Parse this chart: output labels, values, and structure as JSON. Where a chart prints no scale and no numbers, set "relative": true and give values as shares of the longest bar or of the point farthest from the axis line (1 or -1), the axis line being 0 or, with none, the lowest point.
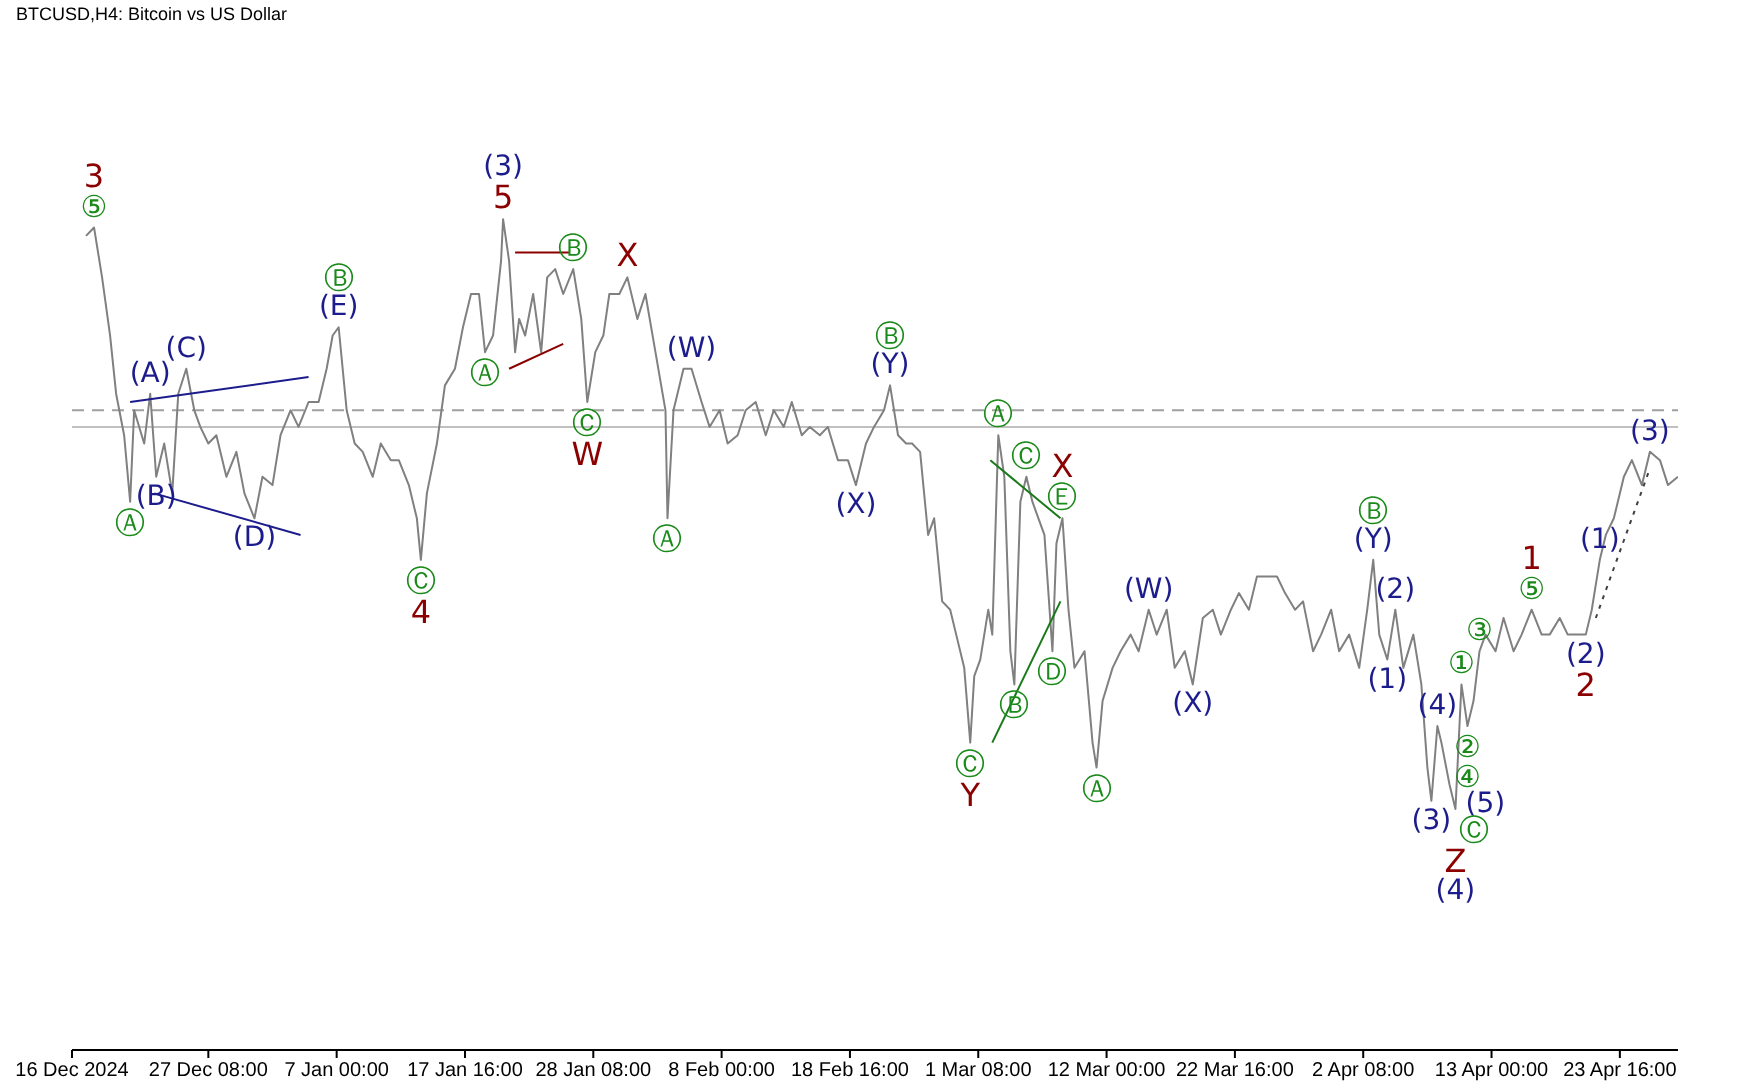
{
  "chart_data": {
    "type": "line",
    "title": "BTCUSD,H4:  Bitcoin vs US Dollar",
    "relative": true,
    "xlim": [
      "2024-12-16",
      "2025-04-28T12:00"
    ],
    "xticks": [
      {
        "value": "2024-12-16",
        "label": "16 Dec 2024"
      },
      {
        "value": "2024-12-27T08:00",
        "label": "27 Dec 08:00"
      },
      {
        "value": "2025-01-07",
        "label": "7 Jan 00:00"
      },
      {
        "value": "2025-01-17T16:00",
        "label": "17 Jan 16:00"
      },
      {
        "value": "2025-01-28T08:00",
        "label": "28 Jan 08:00"
      },
      {
        "value": "2025-02-08",
        "label": "8 Feb 00:00"
      },
      {
        "value": "2025-02-18T16:00",
        "label": "18 Feb 16:00"
      },
      {
        "value": "2025-03-01T08:00",
        "label": "1 Mar 08:00"
      },
      {
        "value": "2025-03-12",
        "label": "12 Mar 00:00"
      },
      {
        "value": "2025-03-22T16:00",
        "label": "22 Mar 16:00"
      },
      {
        "value": "2025-04-02T08:00",
        "label": "2 Apr 08:00"
      },
      {
        "value": "2025-04-13",
        "label": "13 Apr 00:00"
      },
      {
        "value": "2025-04-23T16:00",
        "label": "23 Apr 16:00"
      }
    ],
    "series": [
      {
        "color": "#808080",
        "x": [
          "2024-12-17T04:00",
          "2024-12-17T20:00",
          "2024-12-18T12:00",
          "2024-12-19T04:00",
          "2024-12-19T16:00",
          "2024-12-20T08:00",
          "2024-12-20T20:00",
          "2024-12-21T04:00",
          "2024-12-22T00:00",
          "2024-12-22T12:00",
          "2024-12-23T00:00",
          "2024-12-23T16:00",
          "2024-12-24T08:00",
          "2024-12-24T20:00",
          "2024-12-25T12:00",
          "2024-12-26T04:00",
          "2024-12-26T16:00",
          "2024-12-27T08:00",
          "2024-12-28T00:00",
          "2024-12-28T20:00",
          "2024-12-29T16:00",
          "2024-12-30T08:00",
          "2024-12-31T04:00",
          "2024-12-31T20:00",
          "2025-01-01T16:00",
          "2025-01-02T08:00",
          "2025-01-03T04:00",
          "2025-01-03T20:00",
          "2025-01-04T16:00",
          "2025-01-05T12:00",
          "2025-01-06T04:00",
          "2025-01-06T16:00",
          "2025-01-07T04:00",
          "2025-01-07T20:00",
          "2025-01-08T12:00",
          "2025-01-09T04:00",
          "2025-01-10T00:00",
          "2025-01-10T16:00",
          "2025-01-11T12:00",
          "2025-01-12T04:00",
          "2025-01-13T00:00",
          "2025-01-13T16:00",
          "2025-01-14T00:00",
          "2025-01-14T12:00",
          "2025-01-15T08:00",
          "2025-01-16T00:00",
          "2025-01-16T20:00",
          "2025-01-17T12:00",
          "2025-01-18T04:00",
          "2025-01-18T20:00",
          "2025-01-19T08:00",
          "2025-01-20T00:00",
          "2025-01-20T16:00",
          "2025-01-20T20:00",
          "2025-01-21T08:00",
          "2025-01-21T20:00",
          "2025-01-22T04:00",
          "2025-01-22T16:00",
          "2025-01-23T08:00",
          "2025-01-24T00:00",
          "2025-01-24T12:00",
          "2025-01-25T04:00",
          "2025-01-25T20:00",
          "2025-01-26T16:00",
          "2025-01-27T08:00",
          "2025-01-27T20:00",
          "2025-01-28T12:00",
          "2025-01-29T04:00",
          "2025-01-29T16:00",
          "2025-01-30T12:00",
          "2025-01-31T04:00",
          "2025-02-01T00:00",
          "2025-02-01T16:00",
          "2025-02-02T12:00",
          "2025-02-03T08:00",
          "2025-02-03T12:00",
          "2025-02-04T00:00",
          "2025-02-04T20:00",
          "2025-02-05T12:00",
          "2025-02-06T08:00",
          "2025-02-07T00:00",
          "2025-02-07T20:00",
          "2025-02-08T12:00",
          "2025-02-09T08:00",
          "2025-02-10T00:00",
          "2025-02-10T20:00",
          "2025-02-11T16:00",
          "2025-02-12T08:00",
          "2025-02-13T04:00",
          "2025-02-13T20:00",
          "2025-02-14T16:00",
          "2025-02-15T08:00",
          "2025-02-16T04:00",
          "2025-02-16T20:00",
          "2025-02-17T16:00",
          "2025-02-18T12:00",
          "2025-02-19T04:00",
          "2025-02-20T00:00",
          "2025-02-20T16:00",
          "2025-02-21T12:00",
          "2025-02-22T00:00",
          "2025-02-22T16:00",
          "2025-02-23T08:00",
          "2025-02-23T20:00",
          "2025-02-24T12:00",
          "2025-02-25T04:00",
          "2025-02-25T16:00",
          "2025-02-26T08:00",
          "2025-02-27T00:00",
          "2025-02-27T12:00",
          "2025-02-28T04:00",
          "2025-02-28T16:00",
          "2025-03-01T00:00",
          "2025-03-01T12:00",
          "2025-03-02T04:00",
          "2025-03-02T12:00",
          "2025-03-03T00:00",
          "2025-03-03T12:00",
          "2025-03-04T00:00",
          "2025-03-04T08:00",
          "2025-03-04T20:00",
          "2025-03-05T08:00",
          "2025-03-05T20:00",
          "2025-03-06T08:00",
          "2025-03-06T20:00",
          "2025-03-07T12:00",
          "2025-03-07T20:00",
          "2025-03-08T08:00",
          "2025-03-08T20:00",
          "2025-03-09T08:00",
          "2025-03-10T04:00",
          "2025-03-10T20:00",
          "2025-03-11T04:00",
          "2025-03-11T16:00",
          "2025-03-12T12:00",
          "2025-03-13T04:00",
          "2025-03-14T00:00",
          "2025-03-14T16:00",
          "2025-03-15T12:00",
          "2025-03-16T04:00",
          "2025-03-17T00:00",
          "2025-03-17T16:00",
          "2025-03-18T12:00",
          "2025-03-19T04:00",
          "2025-03-20T00:00",
          "2025-03-20T20:00",
          "2025-03-21T12:00",
          "2025-03-22T08:00",
          "2025-03-23T00:00",
          "2025-03-23T20:00",
          "2025-03-24T12:00",
          "2025-03-25T08:00",
          "2025-03-26T04:00",
          "2025-03-26T20:00",
          "2025-03-27T16:00",
          "2025-03-28T08:00",
          "2025-03-29T04:00",
          "2025-03-29T20:00",
          "2025-03-30T16:00",
          "2025-03-31T08:00",
          "2025-04-01T04:00",
          "2025-04-02T00:00",
          "2025-04-02T16:00",
          "2025-04-03T04:00",
          "2025-04-03T16:00",
          "2025-04-04T08:00",
          "2025-04-05T00:00",
          "2025-04-05T16:00",
          "2025-04-06T12:00",
          "2025-04-07T04:00",
          "2025-04-07T16:00",
          "2025-04-08T00:00",
          "2025-04-08T12:00",
          "2025-04-08T20:00",
          "2025-04-09T12:00",
          "2025-04-10T00:00",
          "2025-04-10T12:00",
          "2025-04-11T00:00",
          "2025-04-11T12:00",
          "2025-04-12T00:00",
          "2025-04-12T12:00",
          "2025-04-13T08:00",
          "2025-04-14T00:00",
          "2025-04-14T20:00",
          "2025-04-15T12:00",
          "2025-04-16T08:00",
          "2025-04-17T04:00",
          "2025-04-17T20:00",
          "2025-04-18T16:00",
          "2025-04-19T08:00",
          "2025-04-20T04:00",
          "2025-04-20T20:00",
          "2025-04-21T08:00",
          "2025-04-22T00:00",
          "2025-04-22T12:00",
          "2025-04-23T04:00",
          "2025-04-24T00:00",
          "2025-04-24T16:00",
          "2025-04-25T12:00",
          "2025-04-26T04:00",
          "2025-04-27T00:00",
          "2025-04-27T16:00",
          "2025-04-28T12:00"
        ],
        "values": [
          0.98,
          0.99,
          0.93,
          0.86,
          0.79,
          0.74,
          0.66,
          0.77,
          0.73,
          0.79,
          0.69,
          0.73,
          0.67,
          0.79,
          0.82,
          0.77,
          0.75,
          0.73,
          0.74,
          0.69,
          0.72,
          0.67,
          0.64,
          0.69,
          0.68,
          0.74,
          0.77,
          0.75,
          0.78,
          0.78,
          0.82,
          0.86,
          0.87,
          0.77,
          0.73,
          0.72,
          0.69,
          0.73,
          0.71,
          0.71,
          0.68,
          0.64,
          0.59,
          0.67,
          0.73,
          0.8,
          0.82,
          0.87,
          0.91,
          0.91,
          0.84,
          0.86,
          0.95,
          1,
          0.95,
          0.84,
          0.88,
          0.86,
          0.91,
          0.84,
          0.93,
          0.94,
          0.91,
          0.94,
          0.88,
          0.78,
          0.84,
          0.86,
          0.91,
          0.91,
          0.93,
          0.88,
          0.91,
          0.84,
          0.77,
          0.64,
          0.77,
          0.82,
          0.82,
          0.78,
          0.75,
          0.77,
          0.73,
          0.74,
          0.77,
          0.78,
          0.74,
          0.77,
          0.75,
          0.78,
          0.74,
          0.75,
          0.74,
          0.75,
          0.71,
          0.71,
          0.68,
          0.73,
          0.75,
          0.77,
          0.8,
          0.74,
          0.73,
          0.73,
          0.72,
          0.62,
          0.64,
          0.54,
          0.53,
          0.5,
          0.46,
          0.37,
          0.45,
          0.47,
          0.53,
          0.5,
          0.74,
          0.69,
          0.48,
          0.44,
          0.66,
          0.69,
          0.66,
          0.64,
          0.62,
          0.48,
          0.61,
          0.64,
          0.53,
          0.46,
          0.48,
          0.37,
          0.34,
          0.42,
          0.46,
          0.48,
          0.5,
          0.48,
          0.53,
          0.5,
          0.53,
          0.46,
          0.48,
          0.44,
          0.52,
          0.53,
          0.5,
          0.53,
          0.55,
          0.53,
          0.57,
          0.57,
          0.57,
          0.55,
          0.53,
          0.54,
          0.48,
          0.5,
          0.53,
          0.48,
          0.5,
          0.46,
          0.53,
          0.59,
          0.5,
          0.47,
          0.53,
          0.46,
          0.5,
          0.44,
          0.34,
          0.3,
          0.39,
          0.37,
          0.32,
          0.29,
          0.44,
          0.39,
          0.42,
          0.48,
          0.5,
          0.48,
          0.52,
          0.48,
          0.5,
          0.53,
          0.5,
          0.5,
          0.52,
          0.5,
          0.5,
          0.5,
          0.53,
          0.59,
          0.62,
          0.64,
          0.69,
          0.71,
          0.68,
          0.72,
          0.71,
          0.68,
          0.69
        ]
      },
      {
        "color": "#1c1c8c",
        "x": [
          "2024-12-20T20:00",
          "2025-01-04T16:00"
        ],
        "values": [
          0.78,
          0.81
        ]
      },
      {
        "color": "#1c1c8c",
        "x": [
          "2024-12-22T20:00",
          "2025-01-04T00:00"
        ],
        "values": [
          0.67,
          0.62
        ]
      },
      {
        "color": "#8b0000",
        "x": [
          "2025-01-21T20:00",
          "2025-01-26T08:00"
        ],
        "values": [
          0.96,
          0.96
        ]
      },
      {
        "color": "#8b0000",
        "x": [
          "2025-01-21T08:00",
          "2025-01-25T20:00"
        ],
        "values": [
          0.82,
          0.85
        ]
      },
      {
        "color": "#1a7a1a",
        "x": [
          "2025-03-02T08:00",
          "2025-03-08T04:00"
        ],
        "values": [
          0.71,
          0.64
        ]
      },
      {
        "color": "#1a7a1a",
        "x": [
          "2025-03-02T12:00",
          "2025-03-08T04:00"
        ],
        "values": [
          0.37,
          0.54
        ]
      },
      {
        "color": "#404040",
        "line_style": "dotted",
        "x": [
          "2025-04-21T16:00",
          "2025-04-26T04:00"
        ],
        "values": [
          0.52,
          0.7
        ]
      }
    ],
    "ref_lines": [
      {
        "axis": "y",
        "value": 0.77,
        "color": "#a0a0a0",
        "line_style": "dashed"
      },
      {
        "axis": "y",
        "value": 0.75,
        "color": "#c0c0c0",
        "line_style": "solid"
      }
    ],
    "annotations": [
      {
        "text": "⑤",
        "x": "2024-12-17T20:00",
        "y": 0.99
      },
      {
        "text": "3",
        "x": "2024-12-17T20:00",
        "y": 0.99
      },
      {
        "text": "Ⓐ",
        "x": "2024-12-20T20:00",
        "y": 0.66
      },
      {
        "text": "(A)",
        "x": "2024-12-22T12:00",
        "y": 0.79
      },
      {
        "text": "(B)",
        "x": "2024-12-23T00:00",
        "y": 0.69
      },
      {
        "text": "(C)",
        "x": "2024-12-25T12:00",
        "y": 0.82
      },
      {
        "text": "(D)",
        "x": "2024-12-31T04:00",
        "y": 0.64
      },
      {
        "text": "(E)",
        "x": "2025-01-07T04:00",
        "y": 0.87
      },
      {
        "text": "Ⓑ",
        "x": "2025-01-07T04:00",
        "y": 0.87
      },
      {
        "text": "Ⓒ",
        "x": "2025-01-14T00:00",
        "y": 0.59
      },
      {
        "text": "4",
        "x": "2025-01-14T00:00",
        "y": 0.59
      },
      {
        "text": "Ⓐ",
        "x": "2025-01-19T08:00",
        "y": 0.84
      },
      {
        "text": "5",
        "x": "2025-01-20T20:00",
        "y": 1
      },
      {
        "text": "(3)",
        "x": "2025-01-20T20:00",
        "y": 1
      },
      {
        "text": "Ⓑ",
        "x": "2025-01-26T16:00",
        "y": 0.94
      },
      {
        "text": "Ⓒ",
        "x": "2025-01-27T20:00",
        "y": 0.78
      },
      {
        "text": "W",
        "x": "2025-01-27T20:00",
        "y": 0.78
      },
      {
        "text": "X",
        "x": "2025-01-31T04:00",
        "y": 0.93
      },
      {
        "text": "Ⓐ",
        "x": "2025-02-03T12:00",
        "y": 0.64
      },
      {
        "text": "(W)",
        "x": "2025-02-05T12:00",
        "y": 0.82
      },
      {
        "text": "(X)",
        "x": "2025-02-19T04:00",
        "y": 0.68
      },
      {
        "text": "(Y)",
        "x": "2025-02-22T00:00",
        "y": 0.8
      },
      {
        "text": "Ⓑ",
        "x": "2025-02-22T00:00",
        "y": 0.8
      },
      {
        "text": "Ⓒ",
        "x": "2025-02-28T16:00",
        "y": 0.37
      },
      {
        "text": "Y",
        "x": "2025-02-28T16:00",
        "y": 0.37
      },
      {
        "text": "Ⓐ",
        "x": "2025-03-03T00:00",
        "y": 0.74
      },
      {
        "text": "Ⓑ",
        "x": "2025-03-04T08:00",
        "y": 0.44
      },
      {
        "text": "Ⓒ",
        "x": "2025-03-05T08:00",
        "y": 0.69
      },
      {
        "text": "Ⓓ",
        "x": "2025-03-07T12:00",
        "y": 0.48
      },
      {
        "text": "Ⓔ",
        "x": "2025-03-08T08:00",
        "y": 0.64
      },
      {
        "text": "X",
        "x": "2025-03-08T08:00",
        "y": 0.64
      },
      {
        "text": "Ⓐ",
        "x": "2025-03-11T04:00",
        "y": 0.34
      },
      {
        "text": "(W)",
        "x": "2025-03-15T12:00",
        "y": 0.53
      },
      {
        "text": "(X)",
        "x": "2025-03-19T04:00",
        "y": 0.44
      },
      {
        "text": "(Y)",
        "x": "2025-04-03T04:00",
        "y": 0.59
      },
      {
        "text": "Ⓑ",
        "x": "2025-04-03T04:00",
        "y": 0.59
      },
      {
        "text": "(1)",
        "x": "2025-04-04T08:00",
        "y": 0.47
      },
      {
        "text": "(2)",
        "x": "2025-04-05T00:00",
        "y": 0.53
      },
      {
        "text": "(3)",
        "x": "2025-04-08T00:00",
        "y": 0.3
      },
      {
        "text": "(4)",
        "x": "2025-04-08T12:00",
        "y": 0.39
      },
      {
        "text": "(5)",
        "x": "2025-04-09T12:00",
        "y": 0.32
      },
      {
        "text": "Ⓒ",
        "x": "2025-04-10T00:00",
        "y": 0.29
      },
      {
        "text": "Z",
        "x": "2025-04-10T00:00",
        "y": 0.29
      },
      {
        "text": "(4)",
        "x": "2025-04-10T00:00",
        "y": 0.29
      },
      {
        "text": "①",
        "x": "2025-04-10T12:00",
        "y": 0.44
      },
      {
        "text": "②",
        "x": "2025-04-11T00:00",
        "y": 0.39
      },
      {
        "text": "④",
        "x": "2025-04-11T00:00",
        "y": 0.39
      },
      {
        "text": "③",
        "x": "2025-04-12T00:00",
        "y": 0.48
      },
      {
        "text": "⑤",
        "x": "2025-04-16T08:00",
        "y": 0.53
      },
      {
        "text": "1",
        "x": "2025-04-16T08:00",
        "y": 0.53
      },
      {
        "text": "(2)",
        "x": "2025-04-20T20:00",
        "y": 0.5
      },
      {
        "text": "2",
        "x": "2025-04-20T20:00",
        "y": 0.5
      },
      {
        "text": "(1)",
        "x": "2025-04-22T00:00",
        "y": 0.59
      },
      {
        "text": "(3)",
        "x": "2025-04-26T04:00",
        "y": 0.72
      }
    ]
  }
}
